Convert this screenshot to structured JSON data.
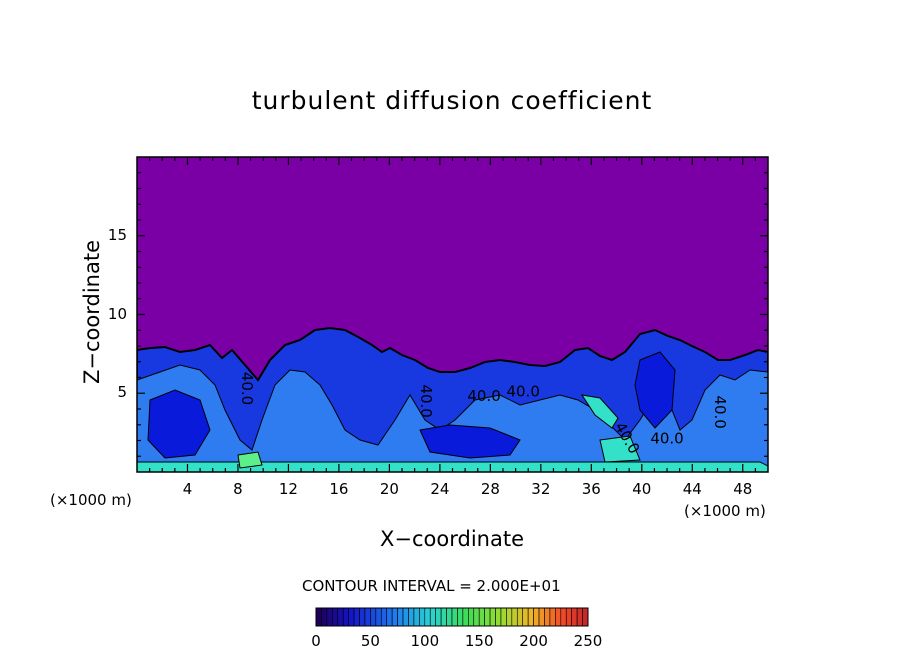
{
  "chart_data": {
    "type": "heatmap",
    "title": "turbulent diffusion coefficient",
    "xlabel": "X−coordinate",
    "ylabel": "Z−coordinate",
    "x_unit": "(×1000 m)",
    "z_unit": "(×1000 m)",
    "xlim": [
      0,
      50
    ],
    "ylim": [
      0,
      20
    ],
    "xticks": [
      4,
      8,
      12,
      16,
      20,
      24,
      28,
      32,
      36,
      40,
      44,
      48
    ],
    "yticks": [
      5,
      10,
      15
    ],
    "contour_interval_text": "CONTOUR INTERVAL =  2.000E+01",
    "contour_labels": [
      {
        "text": "40.0",
        "x": 8.3,
        "z": 5.3,
        "rotate": 90
      },
      {
        "text": "40.0",
        "x": 22.5,
        "z": 4.5,
        "rotate": 90
      },
      {
        "text": "40.0",
        "x": 27.5,
        "z": 4.5,
        "rotate": 0
      },
      {
        "text": "40.0",
        "x": 30.6,
        "z": 4.8,
        "rotate": 0
      },
      {
        "text": "40.0",
        "x": 38.5,
        "z": 2.0,
        "rotate": 60
      },
      {
        "text": "40.0",
        "x": 42.0,
        "z": 1.8,
        "rotate": 0
      },
      {
        "text": "40.0",
        "x": 45.8,
        "z": 3.8,
        "rotate": 90
      }
    ],
    "colorbar": {
      "min": 0,
      "max": 250,
      "ticks": [
        0,
        50,
        100,
        150,
        200,
        250
      ]
    },
    "colors": {
      "background_field": "#7a00a6",
      "low": "#0a1adb",
      "mid": "#2f7cf0",
      "high": "#33e0c8"
    }
  }
}
